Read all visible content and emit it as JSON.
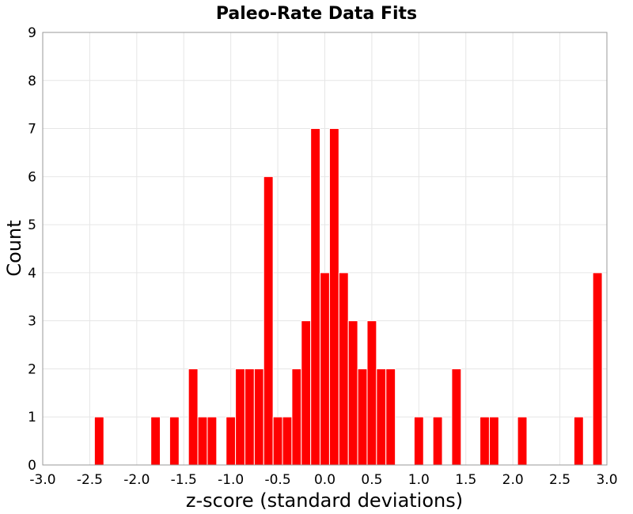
{
  "chart_data": {
    "type": "bar",
    "title": "Paleo-Rate Data Fits",
    "xlabel": "z-score (standard deviations)",
    "ylabel": "Count",
    "xlim": [
      -3.0,
      3.0
    ],
    "ylim": [
      0,
      9
    ],
    "bin_width": 0.1,
    "x_ticks": [
      "-3.0",
      "-2.5",
      "-2.0",
      "-1.5",
      "-1.0",
      "-0.5",
      "0.0",
      "0.5",
      "1.0",
      "1.5",
      "2.0",
      "2.5",
      "3.0"
    ],
    "y_ticks": [
      "0",
      "1",
      "2",
      "3",
      "4",
      "5",
      "6",
      "7",
      "8",
      "9"
    ],
    "grid": true,
    "bar_color": "#ff0000",
    "bins": [
      {
        "x": -2.4,
        "count": 1
      },
      {
        "x": -1.8,
        "count": 1
      },
      {
        "x": -1.6,
        "count": 1
      },
      {
        "x": -1.4,
        "count": 2
      },
      {
        "x": -1.3,
        "count": 1
      },
      {
        "x": -1.2,
        "count": 1
      },
      {
        "x": -1.0,
        "count": 1
      },
      {
        "x": -0.9,
        "count": 2
      },
      {
        "x": -0.8,
        "count": 2
      },
      {
        "x": -0.7,
        "count": 2
      },
      {
        "x": -0.6,
        "count": 6
      },
      {
        "x": -0.5,
        "count": 1
      },
      {
        "x": -0.4,
        "count": 1
      },
      {
        "x": -0.3,
        "count": 2
      },
      {
        "x": -0.2,
        "count": 3
      },
      {
        "x": -0.1,
        "count": 7
      },
      {
        "x": 0.0,
        "count": 4
      },
      {
        "x": 0.1,
        "count": 7
      },
      {
        "x": 0.2,
        "count": 4
      },
      {
        "x": 0.3,
        "count": 3
      },
      {
        "x": 0.4,
        "count": 2
      },
      {
        "x": 0.5,
        "count": 3
      },
      {
        "x": 0.6,
        "count": 2
      },
      {
        "x": 0.7,
        "count": 2
      },
      {
        "x": 1.0,
        "count": 1
      },
      {
        "x": 1.2,
        "count": 1
      },
      {
        "x": 1.4,
        "count": 2
      },
      {
        "x": 1.7,
        "count": 1
      },
      {
        "x": 1.8,
        "count": 1
      },
      {
        "x": 2.1,
        "count": 1
      },
      {
        "x": 2.7,
        "count": 1
      },
      {
        "x": 2.9,
        "count": 4
      }
    ]
  }
}
